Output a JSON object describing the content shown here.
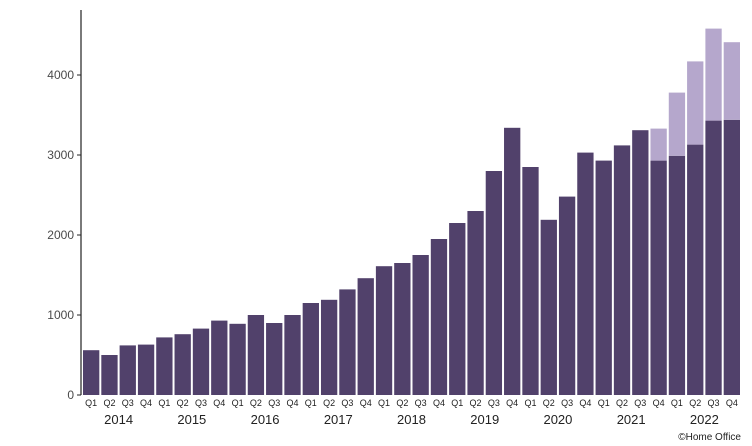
{
  "chart_data": {
    "type": "bar",
    "stacked": true,
    "categories": [
      "Q1",
      "Q2",
      "Q3",
      "Q4",
      "Q1",
      "Q2",
      "Q3",
      "Q4",
      "Q1",
      "Q2",
      "Q3",
      "Q4",
      "Q1",
      "Q2",
      "Q3",
      "Q4",
      "Q1",
      "Q2",
      "Q3",
      "Q4",
      "Q1",
      "Q2",
      "Q3",
      "Q4",
      "Q1",
      "Q2",
      "Q3",
      "Q4",
      "Q1",
      "Q2",
      "Q3",
      "Q4",
      "Q1",
      "Q2",
      "Q3",
      "Q4"
    ],
    "years": [
      "2014",
      "2015",
      "2016",
      "2017",
      "2018",
      "2019",
      "2020",
      "2021",
      "2022"
    ],
    "series": [
      {
        "color": "#51416b",
        "values": [
          560,
          500,
          620,
          630,
          720,
          760,
          830,
          930,
          890,
          1000,
          900,
          1000,
          1150,
          1190,
          1320,
          1460,
          1610,
          1650,
          1750,
          1950,
          2150,
          2300,
          2800,
          3340,
          2850,
          2190,
          2480,
          3030,
          2930,
          3120,
          3310,
          2930,
          2990,
          3130,
          3430,
          3440
        ]
      },
      {
        "color": "#b5a7cc",
        "values": [
          0,
          0,
          0,
          0,
          0,
          0,
          0,
          0,
          0,
          0,
          0,
          0,
          0,
          0,
          0,
          0,
          0,
          0,
          0,
          0,
          0,
          0,
          0,
          0,
          0,
          0,
          0,
          0,
          0,
          0,
          0,
          400,
          790,
          1040,
          1150,
          970
        ]
      }
    ],
    "yticks": [
      0,
      1000,
      2000,
      3000,
      4000
    ],
    "ylim": [
      0,
      4900
    ],
    "title": "",
    "xlabel": "",
    "ylabel": ""
  },
  "credit": "©Home Office"
}
